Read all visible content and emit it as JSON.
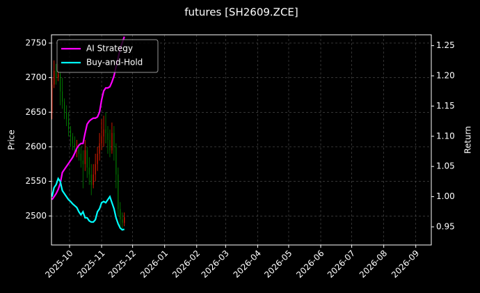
{
  "chart_data": {
    "type": "candlestick",
    "title": "futures [SH2609.ZCE]",
    "ylabel": "Price",
    "y2label": "Return",
    "x": [
      -17,
      -15,
      -13,
      -11,
      -9,
      -7,
      -5,
      -3,
      -1,
      1,
      3,
      5,
      7,
      9,
      11,
      13,
      15,
      17,
      19,
      21,
      23,
      25,
      27,
      29,
      31,
      33,
      35,
      37,
      39,
      41,
      43,
      45,
      47,
      49,
      51,
      53
    ],
    "open": [
      2650,
      2690,
      2710,
      2700,
      2705,
      2680,
      2665,
      2650,
      2640,
      2625,
      2615,
      2605,
      2600,
      2600,
      2590,
      2580,
      2575,
      2595,
      2570,
      2560,
      2545,
      2560,
      2575,
      2590,
      2605,
      2615,
      2625,
      2620,
      2610,
      2595,
      2620,
      2600,
      2560,
      2510,
      2495,
      2490
    ],
    "high": [
      2700,
      2725,
      2720,
      2720,
      2710,
      2700,
      2670,
      2660,
      2650,
      2630,
      2620,
      2615,
      2610,
      2605,
      2600,
      2595,
      2610,
      2600,
      2585,
      2575,
      2575,
      2590,
      2600,
      2620,
      2640,
      2645,
      2650,
      2630,
      2625,
      2635,
      2630,
      2605,
      2570,
      2520,
      2505,
      2505
    ],
    "low": [
      2640,
      2685,
      2690,
      2695,
      2660,
      2655,
      2640,
      2630,
      2615,
      2600,
      2595,
      2590,
      2585,
      2580,
      2570,
      2540,
      2565,
      2555,
      2545,
      2530,
      2540,
      2550,
      2565,
      2580,
      2595,
      2600,
      2605,
      2590,
      2585,
      2590,
      2580,
      2540,
      2500,
      2485,
      2480,
      2485
    ],
    "close": [
      2690,
      2710,
      2700,
      2705,
      2680,
      2665,
      2650,
      2640,
      2625,
      2615,
      2605,
      2600,
      2600,
      2590,
      2580,
      2575,
      2595,
      2570,
      2560,
      2545,
      2560,
      2575,
      2590,
      2605,
      2615,
      2625,
      2620,
      2610,
      2595,
      2620,
      2600,
      2560,
      2510,
      2495,
      2490,
      2498
    ],
    "up_color": "#ff2200",
    "down_color": "#008800",
    "series": [
      {
        "name": "AI Strategy",
        "color": "#ff00ff",
        "axis": "y2",
        "values": [
          0.995,
          1.0,
          1.005,
          1.012,
          1.022,
          1.04,
          1.045,
          1.05,
          1.055,
          1.06,
          1.065,
          1.072,
          1.08,
          1.085,
          1.088,
          1.088,
          1.105,
          1.12,
          1.125,
          1.128,
          1.13,
          1.13,
          1.132,
          1.14,
          1.16,
          1.175,
          1.18,
          1.18,
          1.182,
          1.19,
          1.2,
          1.215,
          1.23,
          1.245,
          1.255,
          1.265
        ]
      },
      {
        "name": "Buy-and-Hold",
        "color": "#00ffff",
        "axis": "y2",
        "values": [
          1.0,
          1.015,
          1.02,
          1.03,
          1.025,
          1.01,
          1.005,
          1.0,
          0.995,
          0.992,
          0.988,
          0.985,
          0.982,
          0.975,
          0.97,
          0.975,
          0.965,
          0.965,
          0.96,
          0.958,
          0.958,
          0.962,
          0.975,
          0.98,
          0.99,
          0.992,
          0.99,
          0.995,
          1.0,
          0.99,
          0.98,
          0.965,
          0.955,
          0.948,
          0.945,
          0.946
        ]
      }
    ],
    "xlim": [
      -17.5,
      350
    ],
    "xticks": [
      {
        "value": 0,
        "label": "2025-10"
      },
      {
        "value": 31,
        "label": "2025-11"
      },
      {
        "value": 61,
        "label": "2025-12"
      },
      {
        "value": 92,
        "label": "2026-01"
      },
      {
        "value": 123,
        "label": "2026-02"
      },
      {
        "value": 151,
        "label": "2026-03"
      },
      {
        "value": 182,
        "label": "2026-04"
      },
      {
        "value": 212,
        "label": "2026-05"
      },
      {
        "value": 243,
        "label": "2026-06"
      },
      {
        "value": 273,
        "label": "2026-07"
      },
      {
        "value": 304,
        "label": "2026-08"
      },
      {
        "value": 335,
        "label": "2026-09"
      }
    ],
    "ylim": [
      2458,
      2762
    ],
    "yticks": [
      2500,
      2550,
      2600,
      2650,
      2700,
      2750
    ],
    "y2lim": [
      0.92,
      1.268
    ],
    "y2ticks": [
      0.95,
      {
        "value": 1.0,
        "label": "1.00"
      },
      1.05,
      {
        "value": 1.1,
        "label": "1.10"
      },
      1.15,
      {
        "value": 1.2,
        "label": "1.20"
      },
      1.25
    ],
    "grid": true,
    "legend": "upper left"
  }
}
